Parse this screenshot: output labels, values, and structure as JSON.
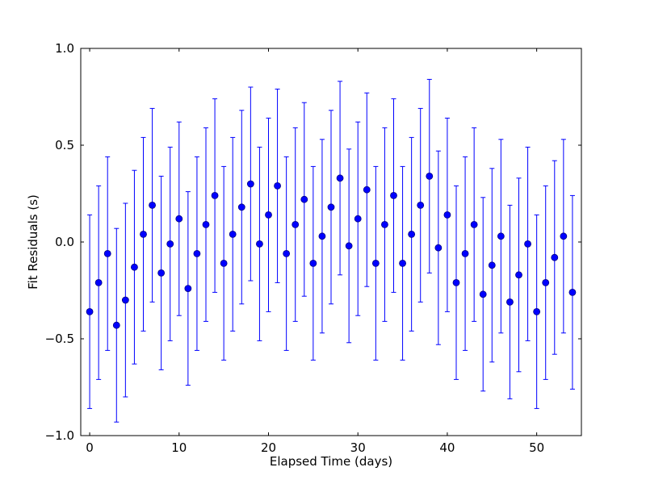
{
  "chart_data": {
    "type": "scatter",
    "title": "",
    "xlabel": "Elapsed Time (days)",
    "ylabel": "Fit Residuals (s)",
    "xlim": [
      -1,
      55
    ],
    "ylim": [
      -1.0,
      1.0
    ],
    "xticks": [
      0,
      10,
      20,
      30,
      40,
      50
    ],
    "xtick_labels": [
      "0",
      "10",
      "20",
      "30",
      "40",
      "50"
    ],
    "yticks": [
      -1.0,
      -0.5,
      0.0,
      0.5,
      1.0
    ],
    "ytick_labels": [
      "−1.0",
      "−0.5",
      "0.0",
      "0.5",
      "1.0"
    ],
    "grid": false,
    "legend": "none",
    "colors": {
      "series": "#0000ff",
      "marker_edge": "#000080",
      "axes": "#000000"
    },
    "series": [
      {
        "marker": "circle",
        "error_bar": 0.5,
        "x": [
          0,
          1,
          2,
          3,
          4,
          5,
          6,
          7,
          8,
          9,
          10,
          11,
          12,
          13,
          14,
          15,
          16,
          17,
          18,
          19,
          20,
          21,
          22,
          23,
          24,
          25,
          26,
          27,
          28,
          29,
          30,
          31,
          32,
          33,
          34,
          35,
          36,
          37,
          38,
          39,
          40,
          41,
          42,
          43,
          44,
          45,
          46,
          47,
          48,
          49,
          50,
          51,
          52,
          53,
          54
        ],
        "y": [
          -0.36,
          -0.21,
          -0.06,
          -0.43,
          -0.3,
          -0.13,
          0.04,
          0.19,
          -0.16,
          -0.01,
          0.12,
          -0.24,
          -0.06,
          0.09,
          0.24,
          -0.11,
          0.04,
          0.18,
          0.3,
          -0.01,
          0.14,
          0.29,
          -0.06,
          0.09,
          0.22,
          -0.11,
          0.03,
          0.18,
          0.33,
          -0.02,
          0.12,
          0.27,
          -0.11,
          0.09,
          0.24,
          -0.11,
          0.04,
          0.19,
          0.34,
          -0.03,
          0.14,
          -0.21,
          -0.06,
          0.09,
          -0.27,
          -0.12,
          0.03,
          -0.31,
          -0.17,
          -0.01,
          -0.36,
          -0.21,
          -0.08,
          0.03,
          -0.26
        ]
      }
    ]
  }
}
